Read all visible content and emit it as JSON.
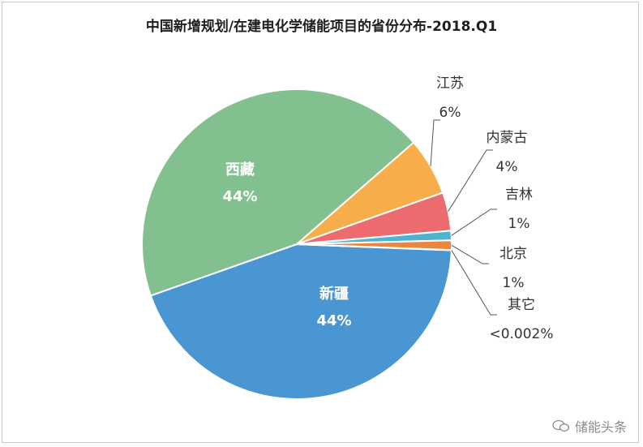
{
  "chart_data": {
    "type": "pie",
    "title": "中国新增规划/在建电化学储能项目的省份分布-2018.Q1",
    "slices": [
      {
        "label": "新疆",
        "value": 44,
        "display": "44%",
        "color": "#4a96d2",
        "label_pos": "inside"
      },
      {
        "label": "西藏",
        "value": 44,
        "display": "44%",
        "color": "#82c08f",
        "label_pos": "inside"
      },
      {
        "label": "江苏",
        "value": 6,
        "display": "6%",
        "color": "#f7ae4a",
        "label_pos": "outside"
      },
      {
        "label": "内蒙古",
        "value": 4,
        "display": "4%",
        "color": "#ec6b6f",
        "label_pos": "outside"
      },
      {
        "label": "吉林",
        "value": 1,
        "display": "1%",
        "color": "#4fb3cf",
        "label_pos": "outside"
      },
      {
        "label": "北京",
        "value": 1,
        "display": "1%",
        "color": "#e8873d",
        "label_pos": "outside"
      },
      {
        "label": "其它",
        "value": 0.002,
        "display": "<0.002%",
        "color": "#9e9e9e",
        "label_pos": "outside"
      }
    ]
  },
  "watermark": {
    "text": "储能头条",
    "icon": "wechat-icon"
  }
}
